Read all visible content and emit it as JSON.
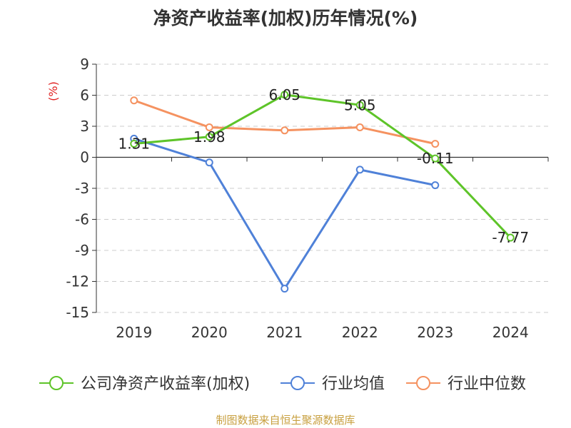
{
  "chart_data": {
    "type": "line",
    "title": "净资产收益率(加权)历年情况(%)",
    "ylabel": "(%)",
    "x": [
      "2019",
      "2020",
      "2021",
      "2022",
      "2023",
      "2024"
    ],
    "yticks": [
      9,
      6,
      3,
      0,
      -3,
      -6,
      -9,
      -12,
      -15
    ],
    "ylim": [
      -15,
      9
    ],
    "grid": true,
    "legend_position": "bottom",
    "series": [
      {
        "name": "公司净资产收益率(加权)",
        "color": "#5ec429",
        "values": [
          1.31,
          1.98,
          6.05,
          5.05,
          -0.11,
          -7.77
        ],
        "labels": [
          "1.31",
          "1.98",
          "6.05",
          "5.05",
          "-0.11",
          "-7.77"
        ]
      },
      {
        "name": "行业均值",
        "color": "#4f81d8",
        "values": [
          1.8,
          -0.5,
          -12.7,
          -1.2,
          -2.7,
          null
        ]
      },
      {
        "name": "行业中位数",
        "color": "#f59260",
        "values": [
          5.5,
          2.9,
          2.6,
          2.9,
          1.3,
          null
        ]
      }
    ]
  },
  "source_text": "制图数据来自恒生聚源数据库"
}
